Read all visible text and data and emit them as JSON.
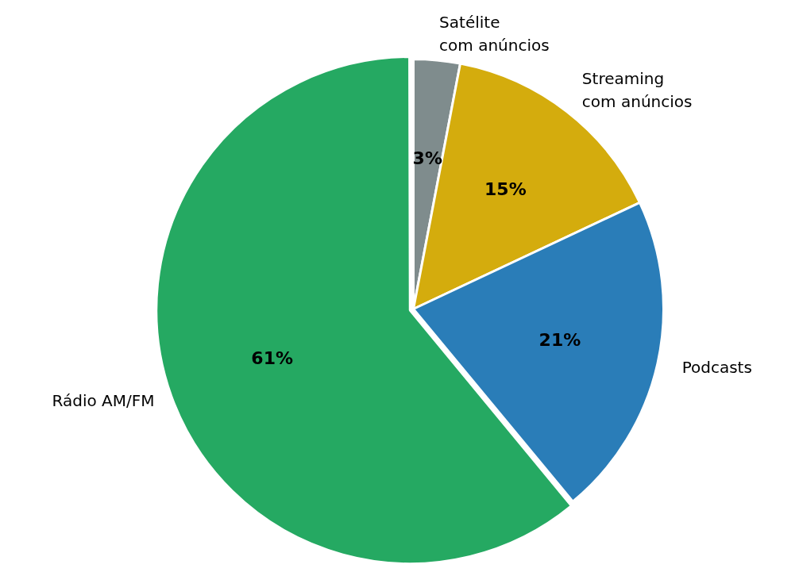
{
  "chart_data": {
    "type": "pie",
    "categories": [
      "Satélite\ncom anúncios",
      "Streaming\ncom anúncios",
      "Podcasts",
      "Rádio AM/FM"
    ],
    "values": [
      3,
      15,
      21,
      61
    ],
    "colors": [
      "#7f8c8d",
      "#d4ac0d",
      "#2a7db8",
      "#25a962"
    ],
    "value_labels": [
      "3%",
      "15%",
      "21%",
      "61%"
    ],
    "legend": false
  }
}
